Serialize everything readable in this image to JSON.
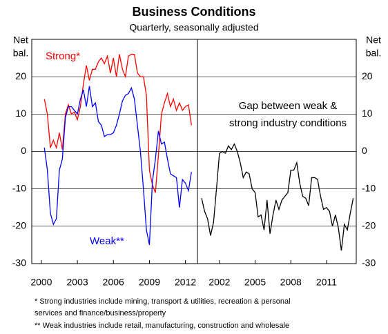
{
  "title": "Business Conditions",
  "subtitle": "Quarterly, seasonally adjusted",
  "notes": [
    "* Strong industries include mining, transport & utilities, recreation & personal",
    "services and finance/business/property",
    "** Weak industries include retail, manufacturing, construction and wholesale"
  ],
  "chart_data": [
    {
      "type": "line",
      "ylabel": [
        "Net",
        "bal."
      ],
      "x": [
        2000.25,
        2000.5,
        2000.75,
        2001,
        2001.25,
        2001.5,
        2001.75,
        2002,
        2002.25,
        2002.5,
        2002.75,
        2003,
        2003.25,
        2003.5,
        2003.75,
        2004,
        2004.25,
        2004.5,
        2004.75,
        2005,
        2005.25,
        2005.5,
        2005.75,
        2006,
        2006.25,
        2006.5,
        2006.75,
        2007,
        2007.25,
        2007.5,
        2007.75,
        2008,
        2008.25,
        2008.5,
        2008.75,
        2009,
        2009.25,
        2009.5,
        2009.75,
        2010,
        2010.25,
        2010.5,
        2010.75,
        2011,
        2011.25,
        2011.5,
        2011.75,
        2012,
        2012.25,
        2012.5
      ],
      "series": [
        {
          "name": "Strong*",
          "color": "#ff0000",
          "values": [
            14,
            10,
            1,
            3,
            1,
            5,
            0.5,
            10,
            12.5,
            10,
            10.5,
            8.5,
            12,
            18,
            23,
            19,
            22,
            22,
            24,
            25,
            23.5,
            25.5,
            21,
            25,
            20,
            26,
            22,
            20,
            25.5,
            26,
            26,
            21,
            20,
            20,
            15,
            -5,
            -9,
            -11,
            -1,
            10,
            13,
            15.5,
            12,
            14,
            11,
            13,
            11,
            12,
            12.5,
            7
          ]
        },
        {
          "name": "Weak**",
          "color": "#0000ff",
          "values": [
            1,
            -5,
            -16.5,
            -19.5,
            -18,
            -5,
            -2,
            9,
            12,
            12,
            11,
            10,
            14,
            16.5,
            12,
            17.5,
            12,
            13,
            8,
            7,
            4,
            4.5,
            4.5,
            5,
            7,
            10,
            13.5,
            15,
            15.5,
            17,
            14,
            7,
            0,
            -10,
            -21,
            -25,
            -8,
            -2,
            5.5,
            2,
            2.5,
            -2,
            -6,
            -6.5,
            -7,
            -15,
            -7.5,
            -8.5,
            -10.5,
            -5.5
          ]
        }
      ],
      "xlim": [
        1999.2,
        2013
      ],
      "xticks": [
        2000,
        2003,
        2006,
        2009,
        2012
      ],
      "ylim": [
        -30,
        30
      ],
      "yticks": [
        20,
        10,
        0,
        -10,
        -20,
        -30
      ],
      "grid": true
    },
    {
      "type": "line",
      "ylabel": [
        "Net",
        "bal."
      ],
      "annotations": [
        "Gap between weak &",
        "strong industry conditions"
      ],
      "x": [
        2000.5,
        2000.75,
        2001,
        2001.25,
        2001.5,
        2001.75,
        2002,
        2002.25,
        2002.5,
        2002.75,
        2003,
        2003.25,
        2003.5,
        2003.75,
        2004,
        2004.25,
        2004.5,
        2004.75,
        2005,
        2005.25,
        2005.5,
        2005.75,
        2006,
        2006.25,
        2006.5,
        2006.75,
        2007,
        2007.25,
        2007.5,
        2007.75,
        2008,
        2008.25,
        2008.5,
        2008.75,
        2009,
        2009.25,
        2009.5,
        2009.75,
        2010,
        2010.25,
        2010.5,
        2010.75,
        2011,
        2011.25,
        2011.5,
        2011.75,
        2012,
        2012.25,
        2012.5,
        2012.75,
        2013,
        2013.25
      ],
      "series": [
        {
          "color": "#000000",
          "values": [
            -12.5,
            -16,
            -18,
            -22.5,
            -19,
            -10,
            -0.5,
            0,
            -0.5,
            1.5,
            0.5,
            2,
            0,
            -3,
            -7,
            -5.5,
            -6,
            -10,
            -11,
            -17.5,
            -17,
            -21,
            -13,
            -22,
            -17,
            -13,
            -15.5,
            -13,
            -12,
            -11,
            -5,
            -5,
            -3,
            -8.5,
            -12,
            -12.5,
            -14.5,
            -7,
            -7,
            -7.5,
            -12,
            -15.5,
            -15,
            -16,
            -20,
            -17,
            -20.5,
            -26.5,
            -19.5,
            -21,
            -16.5,
            -12.5
          ]
        }
      ],
      "xlim": [
        2000.15,
        2013.5
      ],
      "xticks": [
        2002,
        2005,
        2008,
        2011
      ],
      "ylim": [
        -30,
        30
      ],
      "yticks": [
        20,
        10,
        0,
        -10,
        -20,
        -30
      ],
      "grid": true
    }
  ]
}
